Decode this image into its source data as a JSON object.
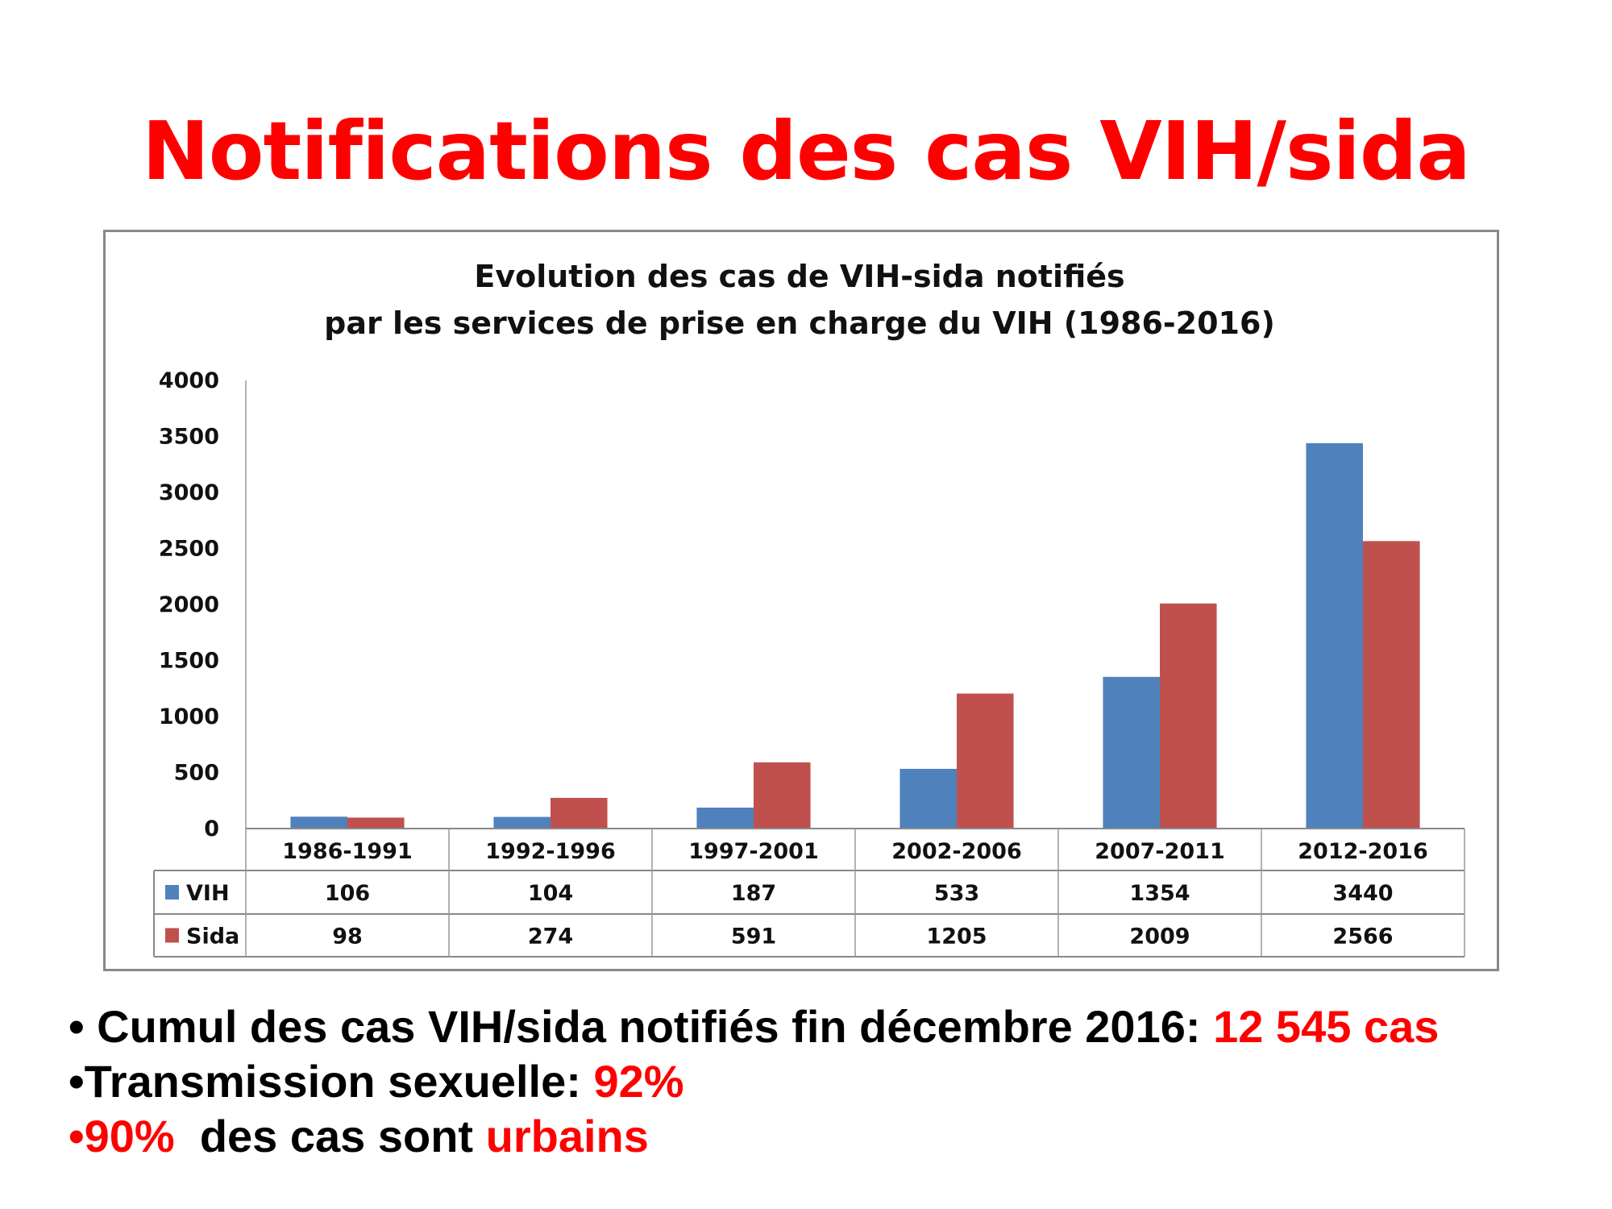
{
  "slide_title": "Notifications des cas VIH/sida",
  "bullets": [
    {
      "prefix": "• Cumul des cas VIH/sida notifiés fin décembre 2016: ",
      "highlight": "12 545 cas"
    },
    {
      "prefix": "•Transmission sexuelle: ",
      "highlight": "92%"
    },
    {
      "bullet": "•",
      "highlight": "90%",
      "middle": "  des cas sont ",
      "highlight2": "urbains"
    }
  ],
  "chart_data": {
    "type": "bar",
    "title": [
      "Evolution des cas de VIH-sida notifiés",
      "par les services de prise en charge du VIH (1986-2016)"
    ],
    "categories": [
      "1986-1991",
      "1992-1996",
      "1997-2001",
      "2002-2006",
      "2007-2011",
      "2012-2016"
    ],
    "series": [
      {
        "name": "VIH",
        "color": "#4f81bd",
        "values": [
          106,
          104,
          187,
          533,
          1354,
          3440
        ]
      },
      {
        "name": "Sida",
        "color": "#c0504d",
        "values": [
          98,
          274,
          591,
          1205,
          2009,
          2566
        ]
      }
    ],
    "ylim": [
      0,
      4000
    ],
    "yticks": [
      0,
      500,
      1000,
      1500,
      2000,
      2500,
      3000,
      3500,
      4000
    ],
    "xlabel": "",
    "ylabel": "",
    "grid": false,
    "legend": "data-table"
  }
}
